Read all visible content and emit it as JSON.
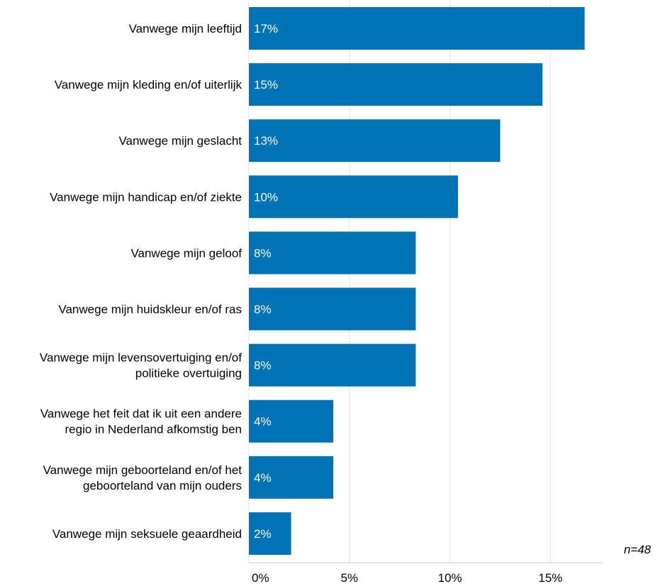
{
  "chart_data": {
    "type": "bar",
    "orientation": "horizontal",
    "categories": [
      [
        "Vanwege mijn leeftijd"
      ],
      [
        "Vanwege mijn kleding en/of uiterlijk"
      ],
      [
        "Vanwege mijn geslacht"
      ],
      [
        "Vanwege mijn handicap en/of ziekte"
      ],
      [
        "Vanwege mijn geloof"
      ],
      [
        "Vanwege mijn huidskleur en/of ras"
      ],
      [
        "Vanwege mijn levensovertuiging en/of",
        "politieke overtuiging"
      ],
      [
        "Vanwege het feit dat ik uit een andere",
        "regio in Nederland afkomstig ben"
      ],
      [
        "Vanwege mijn geboorteland en/of het",
        "geboorteland van mijn ouders"
      ],
      [
        "Vanwege mijn seksuele geaardheid"
      ]
    ],
    "values": [
      16.7,
      14.6,
      12.5,
      10.4,
      8.3,
      8.3,
      8.3,
      4.2,
      4.2,
      2.1
    ],
    "value_labels": [
      "17%",
      "15%",
      "13%",
      "10%",
      "8%",
      "8%",
      "8%",
      "4%",
      "4%",
      "2%"
    ],
    "xlim": [
      0,
      17.6
    ],
    "x_ticks": [
      0,
      5,
      10,
      15
    ],
    "x_tick_labels": [
      "0%",
      "5%",
      "10%",
      "15%"
    ],
    "grid": true,
    "bar_color": "#0073b7",
    "grid_color": "#e6e6e6",
    "axis_color": "#cccccc",
    "note": "n=48"
  }
}
